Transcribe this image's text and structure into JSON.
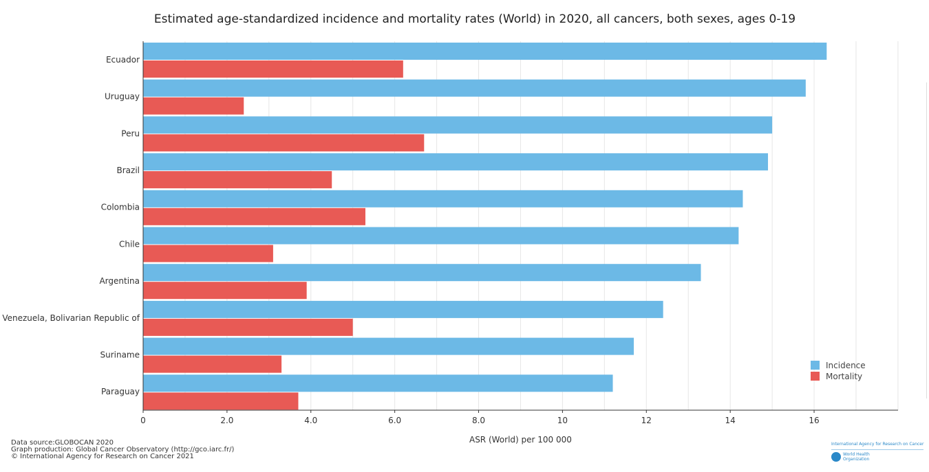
{
  "chart_data": {
    "type": "bar",
    "orientation": "horizontal",
    "title": "Estimated age-standardized incidence and mortality rates (World) in 2020, all cancers, both sexes, ages 0-19",
    "xlabel": "ASR (World) per 100 000",
    "ylabel": "",
    "xlim": [
      0,
      18
    ],
    "xticks": [
      0,
      2,
      4,
      6,
      8,
      10,
      12,
      14,
      16
    ],
    "xtick_labels": [
      "0",
      "2.0",
      "4.0",
      "6.0",
      "8.0",
      "10",
      "12",
      "14",
      "16"
    ],
    "grid": true,
    "legend_position": "bottom-right",
    "categories": [
      "Ecuador",
      "Uruguay",
      "Peru",
      "Brazil",
      "Colombia",
      "Chile",
      "Argentina",
      "Venezuela, Bolivarian Republic of",
      "Suriname",
      "Paraguay"
    ],
    "series": [
      {
        "name": "Incidence",
        "color": "#6cb9e6",
        "values": [
          16.3,
          15.8,
          15.0,
          14.9,
          14.3,
          14.2,
          13.3,
          12.4,
          11.7,
          11.2
        ]
      },
      {
        "name": "Mortality",
        "color": "#e85a55",
        "values": [
          6.2,
          2.4,
          6.7,
          4.5,
          5.3,
          3.1,
          3.9,
          5.0,
          3.3,
          3.7
        ]
      }
    ]
  },
  "footer": {
    "line1": "Data source:GLOBOCAN 2020",
    "line2": "Graph production: Global Cancer Observatory (http://gco.iarc.fr/)",
    "line3": "© International Agency for Research on Cancer 2021"
  },
  "logo": {
    "iarc": "International Agency for Research on Cancer",
    "who": "World Health Organization"
  }
}
